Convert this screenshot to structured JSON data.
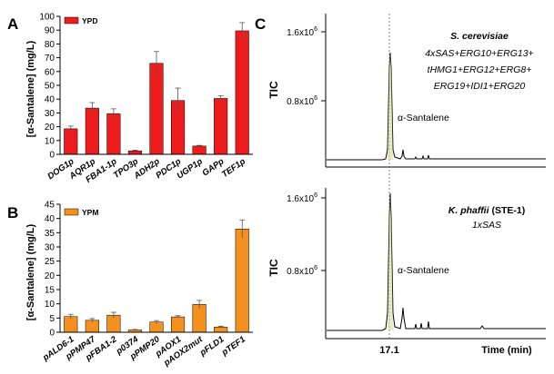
{
  "chart_data": [
    {
      "panel": "A",
      "type": "bar",
      "legend": "YPD",
      "ylabel": "[α-Santalene] (mg/L)",
      "ylim": [
        0,
        100
      ],
      "yticks": [
        "0",
        "10",
        "20",
        "30",
        "40",
        "50",
        "60",
        "70",
        "80",
        "90",
        "100"
      ],
      "categories": [
        "DOG1p",
        "AQR1p",
        "FBA1-1p",
        "TPO3p",
        "ADH2p",
        "PDC1p",
        "UGP1p",
        "GAPp",
        "TEF1p"
      ],
      "values": [
        18.5,
        33.5,
        29.5,
        2.5,
        66,
        39,
        6,
        40.5,
        89.5
      ],
      "errors": [
        2,
        4,
        3.5,
        0.5,
        8.5,
        9,
        0.5,
        2,
        6
      ],
      "color": "#ee1c1c"
    },
    {
      "panel": "B",
      "type": "bar",
      "legend": "YPM",
      "ylabel": "[α-Santalene] (mg/L)",
      "ylim": [
        0,
        45
      ],
      "yticks": [
        "0",
        "5",
        "10",
        "15",
        "20",
        "25",
        "30",
        "35",
        "40",
        "45"
      ],
      "categories": [
        "pALD6-1",
        "pPMP47",
        "pFBA1-2",
        "p0374",
        "pPMP20",
        "pAOX1",
        "pAOX2mut",
        "pFLD1",
        "pTEF1"
      ],
      "values": [
        5.5,
        4.2,
        6,
        0.8,
        3.6,
        5.4,
        9.8,
        1.8,
        36.3
      ],
      "errors": [
        0.8,
        0.6,
        1,
        0.2,
        0.5,
        0.4,
        1.4,
        0.3,
        3.2
      ],
      "color": "#f4901e"
    },
    {
      "panel": "C",
      "type": "line",
      "ylabel": "TIC",
      "xlabel": "Time (min)",
      "x_tick_label": "17.1",
      "subplots": [
        {
          "yticks": [
            "1.6x10",
            "0.8x10"
          ],
          "ytick_exp": "6",
          "organism": "S. cerevisiae",
          "genotype_lines": [
            "4xSAS+ERG10+ERG13+",
            "tHMG1+ERG12+ERG8+",
            "ERG19+IDI1+ERG20"
          ],
          "peak_label": "α-Santalene"
        },
        {
          "yticks": [
            "1.6x10",
            "0.8x10"
          ],
          "ytick_exp": "6",
          "organism": "K. phaffii",
          "strain": "(STE-1)",
          "genotype_lines": [
            "1xSAS"
          ],
          "peak_label": "α-Santalene"
        }
      ]
    }
  ]
}
